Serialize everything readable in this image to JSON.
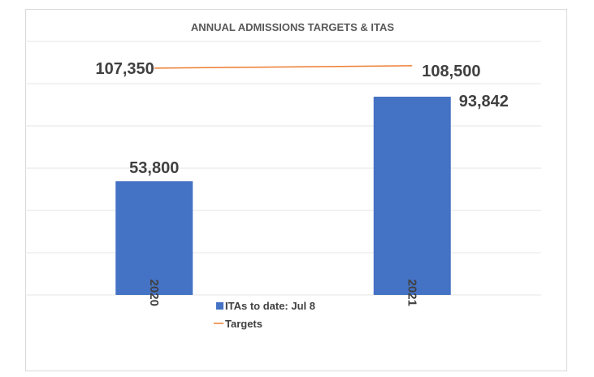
{
  "chart_data": {
    "type": "bar",
    "title": "ANNUAL ADMISSIONS TARGETS & ITAS",
    "categories": [
      "2020",
      "2021"
    ],
    "series": [
      {
        "name": "ITAs to date: Jul 8",
        "type": "bar",
        "values": [
          53800,
          93842
        ],
        "labels": [
          "53,800",
          "93,842"
        ],
        "color": "#4472c4"
      },
      {
        "name": "Targets",
        "type": "line",
        "values": [
          107350,
          108500
        ],
        "labels": [
          "107,350",
          "108,500"
        ],
        "color": "#ed7d31"
      }
    ],
    "ylim": [
      0,
      120000
    ],
    "y_gridlines": true,
    "y_tick_labels_shown": false,
    "x_tick_label_rotation": 90,
    "legend": "bottom-center"
  }
}
